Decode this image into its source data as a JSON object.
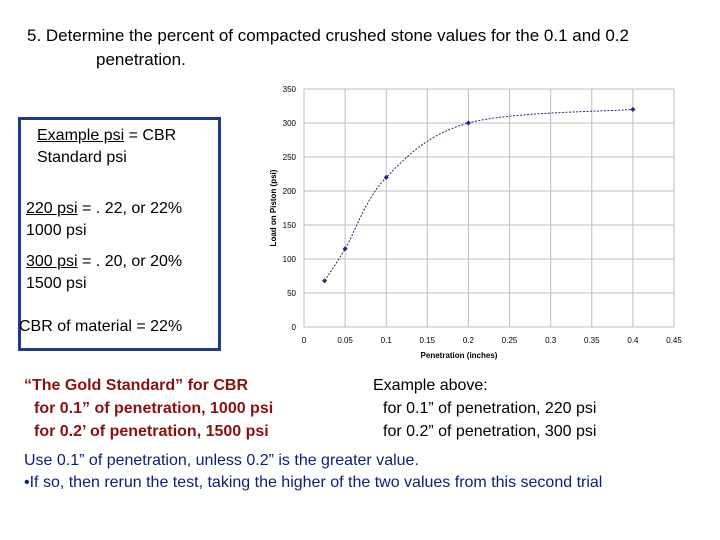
{
  "title": {
    "line1": "5. Determine the percent of compacted crushed stone values for the 0.1 and 0.2",
    "line2": "penetration."
  },
  "calc_box": {
    "line1_underlined": "Example psi",
    "line1_rest": " = CBR",
    "line2": "Standard psi",
    "line3_underlined": "220 psi",
    "line3_rest": " = . 22, or 22%",
    "line4": "1000 psi",
    "line5_underlined": "300 psi",
    "line5_rest": " = . 20, or 20%",
    "line6": "1500 psi",
    "line7": "CBR of material = 22%",
    "border_color": "#1f3a8a"
  },
  "gold_standard": {
    "line1": "“The Gold Standard” for CBR",
    "line2": "for 0.1” of penetration, 1000 psi",
    "line3": "for 0.2’ of penetration, 1500 psi",
    "color": "#8b1010"
  },
  "example_above": {
    "line1": "Example above:",
    "line2": "for 0.1” of penetration, 220 psi",
    "line3": "for 0.2” of penetration, 300 psi"
  },
  "footer": {
    "line1": "Use 0.1” of penetration, unless 0.2” is the greater value.",
    "line2": "•If so, then rerun the test, taking the higher of the two values from this second trial",
    "color": "#0b1e78"
  },
  "chart_data": {
    "type": "line",
    "title": "",
    "xlabel": "Penetration (inches)",
    "ylabel": "Load on Piston (psi)",
    "xlim": [
      0,
      0.45
    ],
    "ylim": [
      0,
      350
    ],
    "x_ticks": [
      0,
      0.05,
      0.1,
      0.15,
      0.2,
      0.25,
      0.3,
      0.35,
      0.4,
      0.45
    ],
    "x_tick_labels": [
      "0",
      "0.05",
      "0.1",
      "0.15",
      "0.2",
      "0.25",
      "0.3",
      "0.35",
      "0.4",
      "0.45"
    ],
    "y_ticks": [
      0,
      50,
      100,
      150,
      200,
      250,
      300,
      350
    ],
    "y_tick_labels": [
      "0",
      "50",
      "100",
      "150",
      "200",
      "250",
      "300",
      "350"
    ],
    "grid": true,
    "series": [
      {
        "x": [
          0.025,
          0.05,
          0.1,
          0.2,
          0.4
        ],
        "y": [
          68,
          115,
          220,
          300,
          320
        ],
        "color": "#1f2a7a"
      }
    ]
  }
}
